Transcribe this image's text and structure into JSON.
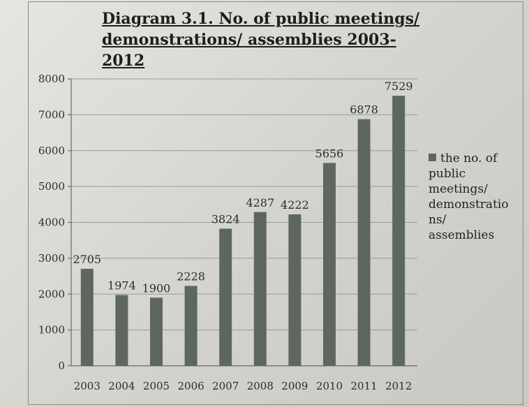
{
  "chart_data": {
    "type": "bar",
    "title_line1": "Diagram 3.1. No. of public meetings/",
    "title_line2": "demonstrations/ assemblies 2003-2012",
    "categories": [
      "2003",
      "2004",
      "2005",
      "2006",
      "2007",
      "2008",
      "2009",
      "2010",
      "2011",
      "2012"
    ],
    "series": [
      {
        "name": "the no. of\npublic\nmeetings/\ndemonstratio\nns/\nassemblies",
        "values": [
          2705,
          1974,
          1900,
          2228,
          3824,
          4287,
          4222,
          5656,
          6878,
          7529
        ]
      }
    ],
    "data_labels": [
      "2705",
      "1974",
      "1900",
      "2228",
      "3824",
      "4287",
      "4222",
      "5656",
      "6878",
      "7529"
    ],
    "y_ticks": [
      "0",
      "1000",
      "2000",
      "3000",
      "4000",
      "5000",
      "6000",
      "7000",
      "8000"
    ],
    "ylim": [
      0,
      8000
    ],
    "grid": true,
    "legend_position": "right",
    "colors": {
      "bar": "#5e6660"
    }
  }
}
